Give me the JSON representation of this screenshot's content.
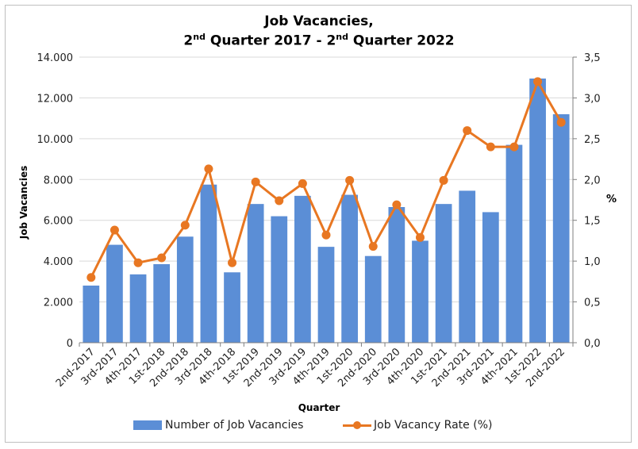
{
  "chart_data": {
    "type": "bar",
    "title_line1": "Job Vacancies,",
    "title_line2": {
      "q1": "2",
      "sup1": "nd",
      "mid": " Quarter 2017 - 2",
      "sup2": "nd",
      "end": " Quarter 2022"
    },
    "xlabel": "Quarter",
    "ylabel": "Job Vacancies",
    "y2label": "%",
    "ylim": [
      0,
      14000
    ],
    "y2lim": [
      0,
      3.5
    ],
    "yticks": [
      "0",
      "2.000",
      "4.000",
      "6.000",
      "8.000",
      "10.000",
      "12.000",
      "14.000"
    ],
    "y2ticks": [
      "0,0",
      "0,5",
      "1,0",
      "1,5",
      "2,0",
      "2,5",
      "3,0",
      "3,5"
    ],
    "categories": [
      "2nd-2017",
      "3rd-2017",
      "4th-2017",
      "1st-2018",
      "2nd-2018",
      "3rd-2018",
      "4th-2018",
      "1st-2019",
      "2nd-2019",
      "3rd-2019",
      "4th-2019",
      "1st-2020",
      "2nd-2020",
      "3rd-2020",
      "4th-2020",
      "1st-2021",
      "2nd-2021",
      "3rd-2021",
      "4th-2021",
      "1st-2022",
      "2nd-2022"
    ],
    "series": [
      {
        "name": "Number of Job Vacancies",
        "type": "bar",
        "axis": "left",
        "color": "#5b8ed6",
        "values": [
          2800,
          4800,
          3350,
          3850,
          5200,
          7750,
          3450,
          6800,
          6200,
          7200,
          4700,
          7250,
          4250,
          6650,
          5000,
          6800,
          7450,
          6400,
          9700,
          12950,
          11200
        ]
      },
      {
        "name": "Job Vacancy Rate (%)",
        "type": "line",
        "axis": "right",
        "color": "#e87722",
        "values": [
          0.8,
          1.38,
          0.98,
          1.04,
          1.44,
          2.13,
          0.98,
          1.97,
          1.74,
          1.95,
          1.32,
          1.99,
          1.18,
          1.69,
          1.29,
          1.99,
          2.6,
          2.4,
          2.4,
          3.2,
          2.7
        ]
      }
    ],
    "grid": "horizontal",
    "legend_position": "bottom"
  }
}
